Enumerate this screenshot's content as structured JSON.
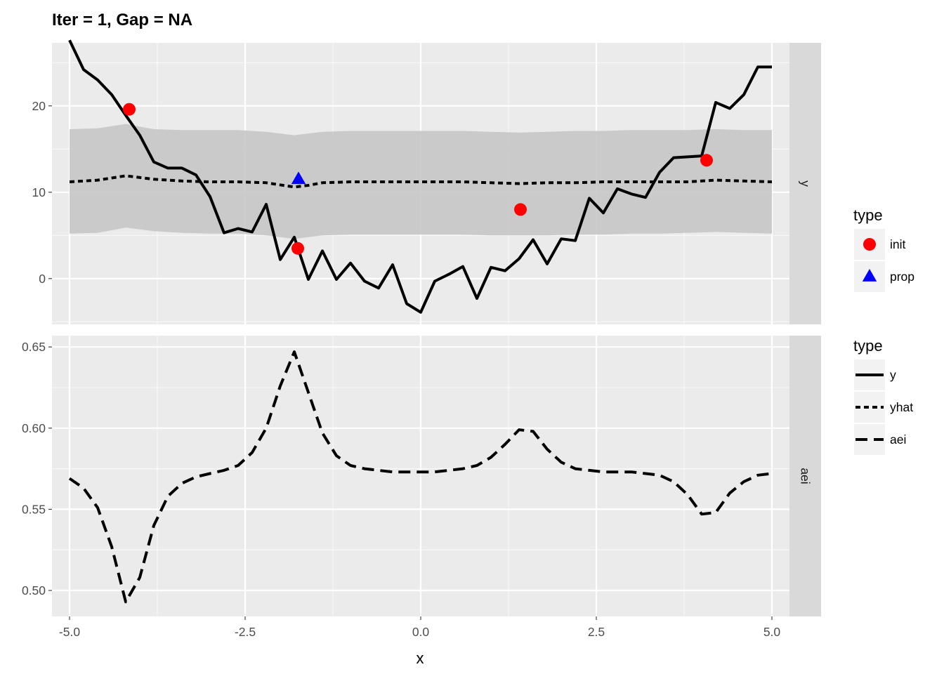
{
  "chart_data": {
    "type": "line",
    "title": "Iter = 1, Gap = NA",
    "xlabel": "x",
    "xlim": [
      -5.25,
      5.25
    ],
    "x_ticks": [
      -5.0,
      -2.5,
      0.0,
      2.5,
      5.0
    ],
    "x_tick_labels": [
      "-5.0",
      "-2.5",
      "0.0",
      "2.5",
      "5.0"
    ],
    "grid": true,
    "panels": [
      {
        "strip": "y",
        "ylim": [
          -5.3,
          27.3
        ],
        "y_ticks": [
          0,
          10,
          20
        ],
        "y_tick_labels": [
          "0",
          "10",
          "20"
        ],
        "series": [
          {
            "name": "y",
            "style": "solid",
            "x": [
              -5.0,
              -4.8,
              -4.6,
              -4.4,
              -4.2,
              -4.0,
              -3.8,
              -3.6,
              -3.4,
              -3.2,
              -3.0,
              -2.8,
              -2.6,
              -2.4,
              -2.2,
              -2.0,
              -1.8,
              -1.6,
              -1.4,
              -1.2,
              -1.0,
              -0.8,
              -0.6,
              -0.4,
              -0.2,
              0.0,
              0.2,
              0.4,
              0.6,
              0.8,
              1.0,
              1.2,
              1.4,
              1.6,
              1.8,
              2.0,
              2.2,
              2.4,
              2.6,
              2.8,
              3.0,
              3.2,
              3.4,
              3.6,
              3.8,
              4.0,
              4.2,
              4.4,
              4.6,
              4.8,
              5.0
            ],
            "values": [
              27.6,
              24.2,
              23.0,
              21.3,
              18.9,
              16.6,
              13.5,
              12.8,
              12.8,
              12.0,
              9.5,
              5.3,
              5.8,
              5.4,
              8.6,
              2.2,
              4.8,
              -0.1,
              3.2,
              -0.1,
              1.8,
              -0.3,
              -1.1,
              1.6,
              -2.9,
              -3.9,
              -0.3,
              0.5,
              1.4,
              -2.3,
              1.3,
              0.9,
              2.3,
              4.5,
              1.7,
              4.6,
              4.4,
              9.3,
              7.6,
              10.4,
              9.8,
              9.4,
              12.3,
              14.0,
              14.1,
              14.2,
              20.4,
              19.7,
              21.3,
              24.5,
              24.5
            ]
          },
          {
            "name": "yhat",
            "style": "dotted",
            "x": [
              -5.0,
              -4.6,
              -4.2,
              -3.8,
              -3.4,
              -3.0,
              -2.6,
              -2.2,
              -1.8,
              -1.6,
              -1.4,
              -1.0,
              -0.6,
              -0.2,
              0.2,
              0.6,
              1.0,
              1.4,
              1.8,
              2.2,
              2.6,
              3.0,
              3.4,
              3.8,
              4.2,
              4.6,
              5.0
            ],
            "values": [
              11.2,
              11.4,
              11.9,
              11.5,
              11.3,
              11.2,
              11.2,
              11.1,
              10.6,
              10.8,
              11.1,
              11.2,
              11.2,
              11.2,
              11.2,
              11.2,
              11.1,
              11.0,
              11.1,
              11.1,
              11.2,
              11.2,
              11.2,
              11.2,
              11.4,
              11.3,
              11.2
            ]
          }
        ],
        "band": {
          "x": [
            -5.0,
            -4.6,
            -4.2,
            -3.8,
            -3.4,
            -3.0,
            -2.6,
            -2.2,
            -1.8,
            -1.4,
            -1.0,
            -0.6,
            -0.2,
            0.2,
            0.6,
            1.0,
            1.4,
            1.8,
            2.2,
            2.6,
            3.0,
            3.4,
            3.8,
            4.2,
            4.6,
            5.0
          ],
          "upper": [
            17.3,
            17.4,
            17.9,
            17.3,
            17.2,
            17.2,
            17.2,
            17.0,
            16.6,
            17.0,
            17.1,
            17.1,
            17.1,
            17.1,
            17.1,
            17.0,
            16.9,
            17.0,
            17.1,
            17.1,
            17.2,
            17.2,
            17.2,
            17.3,
            17.2,
            17.2
          ],
          "lower": [
            5.2,
            5.3,
            5.9,
            5.5,
            5.3,
            5.2,
            5.2,
            5.0,
            4.6,
            5.0,
            5.1,
            5.1,
            5.1,
            5.1,
            5.1,
            5.0,
            5.0,
            5.0,
            5.1,
            5.1,
            5.2,
            5.2,
            5.3,
            5.4,
            5.3,
            5.2
          ]
        },
        "points": [
          {
            "type": "init",
            "x": -4.15,
            "y": 19.6
          },
          {
            "type": "init",
            "x": -1.75,
            "y": 3.5
          },
          {
            "type": "init",
            "x": 1.42,
            "y": 8.0
          },
          {
            "type": "init",
            "x": 4.07,
            "y": 13.7
          },
          {
            "type": "prop",
            "x": -1.74,
            "y": 11.5
          }
        ]
      },
      {
        "strip": "aei",
        "ylim": [
          0.484,
          0.657
        ],
        "y_ticks": [
          0.5,
          0.55,
          0.6,
          0.65
        ],
        "y_tick_labels": [
          "0.50",
          "0.55",
          "0.60",
          "0.65"
        ],
        "series": [
          {
            "name": "aei",
            "style": "dashed",
            "x": [
              -5.0,
              -4.8,
              -4.6,
              -4.4,
              -4.2,
              -4.0,
              -3.8,
              -3.6,
              -3.4,
              -3.2,
              -3.0,
              -2.8,
              -2.6,
              -2.4,
              -2.2,
              -2.0,
              -1.8,
              -1.6,
              -1.4,
              -1.2,
              -1.0,
              -0.8,
              -0.6,
              -0.4,
              -0.2,
              0.0,
              0.2,
              0.4,
              0.6,
              0.8,
              1.0,
              1.2,
              1.4,
              1.6,
              1.8,
              2.0,
              2.2,
              2.4,
              2.6,
              2.8,
              3.0,
              3.2,
              3.4,
              3.6,
              3.8,
              4.0,
              4.2,
              4.4,
              4.6,
              4.8,
              5.0
            ],
            "values": [
              0.569,
              0.563,
              0.551,
              0.527,
              0.493,
              0.508,
              0.54,
              0.558,
              0.566,
              0.57,
              0.572,
              0.574,
              0.577,
              0.585,
              0.6,
              0.626,
              0.647,
              0.622,
              0.597,
              0.583,
              0.577,
              0.575,
              0.574,
              0.573,
              0.573,
              0.573,
              0.573,
              0.574,
              0.575,
              0.577,
              0.582,
              0.59,
              0.599,
              0.598,
              0.587,
              0.579,
              0.575,
              0.574,
              0.573,
              0.573,
              0.573,
              0.572,
              0.571,
              0.567,
              0.559,
              0.547,
              0.548,
              0.56,
              0.567,
              0.571,
              0.572
            ]
          }
        ]
      }
    ],
    "legend": {
      "placement": "right",
      "sections": [
        {
          "title": "type",
          "items": [
            {
              "label": "init",
              "shape": "circle",
              "color": "#ff0000"
            },
            {
              "label": "prop",
              "shape": "triangle",
              "color": "#0000ff"
            }
          ]
        },
        {
          "title": "type",
          "items": [
            {
              "label": "y",
              "linetype": "solid"
            },
            {
              "label": "yhat",
              "linetype": "dotted"
            },
            {
              "label": "aei",
              "linetype": "dashed"
            }
          ]
        }
      ]
    },
    "colors": {
      "panel_bg": "#ebebeb",
      "grid": "#ffffff",
      "strip_bg": "#d9d9d9",
      "band": "#c6c6c6",
      "line": "#000000"
    }
  }
}
